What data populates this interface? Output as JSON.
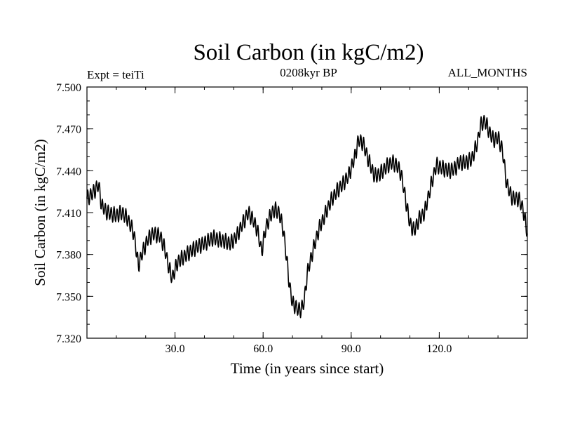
{
  "colors": {
    "background": "#ffffff",
    "line": "#000000",
    "axis": "#000000"
  },
  "chart_data": {
    "type": "line",
    "title": "Soil Carbon (in kgC/m2)",
    "subtitle": "0208kyr BP",
    "left_annotation": "Expt = teiTi",
    "right_annotation": "ALL_MONTHS",
    "xlabel": "Time (in years since start)",
    "ylabel": "Soil Carbon (in kgC/m2)",
    "xlim": [
      0,
      150
    ],
    "ylim": [
      7.32,
      7.5
    ],
    "xticks": [
      30,
      60,
      90,
      120
    ],
    "xtick_labels": [
      "30.0",
      "60.0",
      "90.0",
      "120.0"
    ],
    "yticks": [
      7.32,
      7.35,
      7.38,
      7.41,
      7.44,
      7.47,
      7.5
    ],
    "ytick_labels": [
      "7.320",
      "7.350",
      "7.380",
      "7.410",
      "7.440",
      "7.470",
      "7.500"
    ],
    "seasonal_amplitude": 0.006,
    "series": [
      {
        "name": "Soil Carbon",
        "x": [
          0,
          2,
          4,
          5,
          7,
          10,
          12,
          14,
          16,
          17.5,
          19,
          21,
          23,
          25,
          26.5,
          28,
          29,
          31,
          34,
          37,
          40,
          43,
          46,
          49,
          51,
          53,
          55,
          56.5,
          58,
          59.5,
          61,
          63,
          64,
          65.5,
          67,
          69,
          70,
          71,
          72,
          73,
          74,
          75,
          77,
          79,
          81,
          83,
          85,
          87,
          89,
          91,
          92.5,
          94,
          96,
          98,
          100,
          102,
          104,
          105.5,
          107,
          108.5,
          110,
          111.5,
          113,
          115,
          117,
          119,
          121,
          123,
          125,
          127,
          129,
          131,
          133,
          134,
          135.5,
          137,
          138.5,
          140,
          141.5,
          143,
          145,
          147,
          148.5,
          150
        ],
        "y": [
          7.42,
          7.424,
          7.43,
          7.415,
          7.41,
          7.408,
          7.41,
          7.405,
          7.395,
          7.372,
          7.382,
          7.392,
          7.395,
          7.393,
          7.384,
          7.37,
          7.363,
          7.375,
          7.38,
          7.385,
          7.388,
          7.392,
          7.39,
          7.388,
          7.393,
          7.402,
          7.41,
          7.405,
          7.398,
          7.382,
          7.4,
          7.41,
          7.412,
          7.41,
          7.396,
          7.358,
          7.345,
          7.343,
          7.34,
          7.341,
          7.346,
          7.366,
          7.383,
          7.398,
          7.408,
          7.418,
          7.425,
          7.43,
          7.436,
          7.448,
          7.462,
          7.46,
          7.447,
          7.436,
          7.438,
          7.443,
          7.446,
          7.444,
          7.438,
          7.42,
          7.402,
          7.397,
          7.405,
          7.41,
          7.428,
          7.444,
          7.442,
          7.44,
          7.441,
          7.446,
          7.446,
          7.448,
          7.46,
          7.472,
          7.476,
          7.468,
          7.462,
          7.464,
          7.455,
          7.43,
          7.42,
          7.42,
          7.413,
          7.395
        ]
      }
    ]
  }
}
